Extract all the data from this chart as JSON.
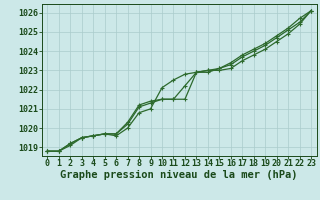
{
  "x": [
    0,
    1,
    2,
    3,
    4,
    5,
    6,
    7,
    8,
    9,
    10,
    11,
    12,
    13,
    14,
    15,
    16,
    17,
    18,
    19,
    20,
    21,
    22,
    23
  ],
  "line1": [
    1018.8,
    1018.8,
    1019.1,
    1019.5,
    1019.6,
    1019.7,
    1019.6,
    1020.0,
    1020.8,
    1021.0,
    1022.1,
    1022.5,
    1022.8,
    1022.9,
    1023.0,
    1023.0,
    1023.1,
    1023.5,
    1023.8,
    1024.1,
    1024.5,
    1024.9,
    1025.4,
    1026.1
  ],
  "line2": [
    1018.8,
    1018.8,
    1019.2,
    1019.5,
    1019.6,
    1019.7,
    1019.7,
    1020.2,
    1021.1,
    1021.3,
    1021.5,
    1021.5,
    1022.2,
    1022.9,
    1023.0,
    1023.1,
    1023.3,
    1023.7,
    1024.0,
    1024.3,
    1024.7,
    1025.1,
    1025.5,
    1026.1
  ],
  "line3": [
    1018.8,
    1018.8,
    1019.2,
    1019.5,
    1019.6,
    1019.7,
    1019.7,
    1020.3,
    1021.2,
    1021.4,
    1021.5,
    1021.5,
    1021.5,
    1022.9,
    1022.9,
    1023.1,
    1023.4,
    1023.8,
    1024.1,
    1024.4,
    1024.8,
    1025.2,
    1025.7,
    1026.1
  ],
  "ylim_min": 1018.55,
  "ylim_max": 1026.45,
  "yticks": [
    1019,
    1020,
    1021,
    1022,
    1023,
    1024,
    1025,
    1026
  ],
  "xticks": [
    0,
    1,
    2,
    3,
    4,
    5,
    6,
    7,
    8,
    9,
    10,
    11,
    12,
    13,
    14,
    15,
    16,
    17,
    18,
    19,
    20,
    21,
    22,
    23
  ],
  "xlabel": "Graphe pression niveau de la mer (hPa)",
  "line_color": "#2d6a2d",
  "bg_color": "#cce8e8",
  "grid_color": "#aacccc",
  "text_color": "#1a4a1a",
  "label_fontsize": 6.0,
  "xlabel_fontsize": 7.5
}
